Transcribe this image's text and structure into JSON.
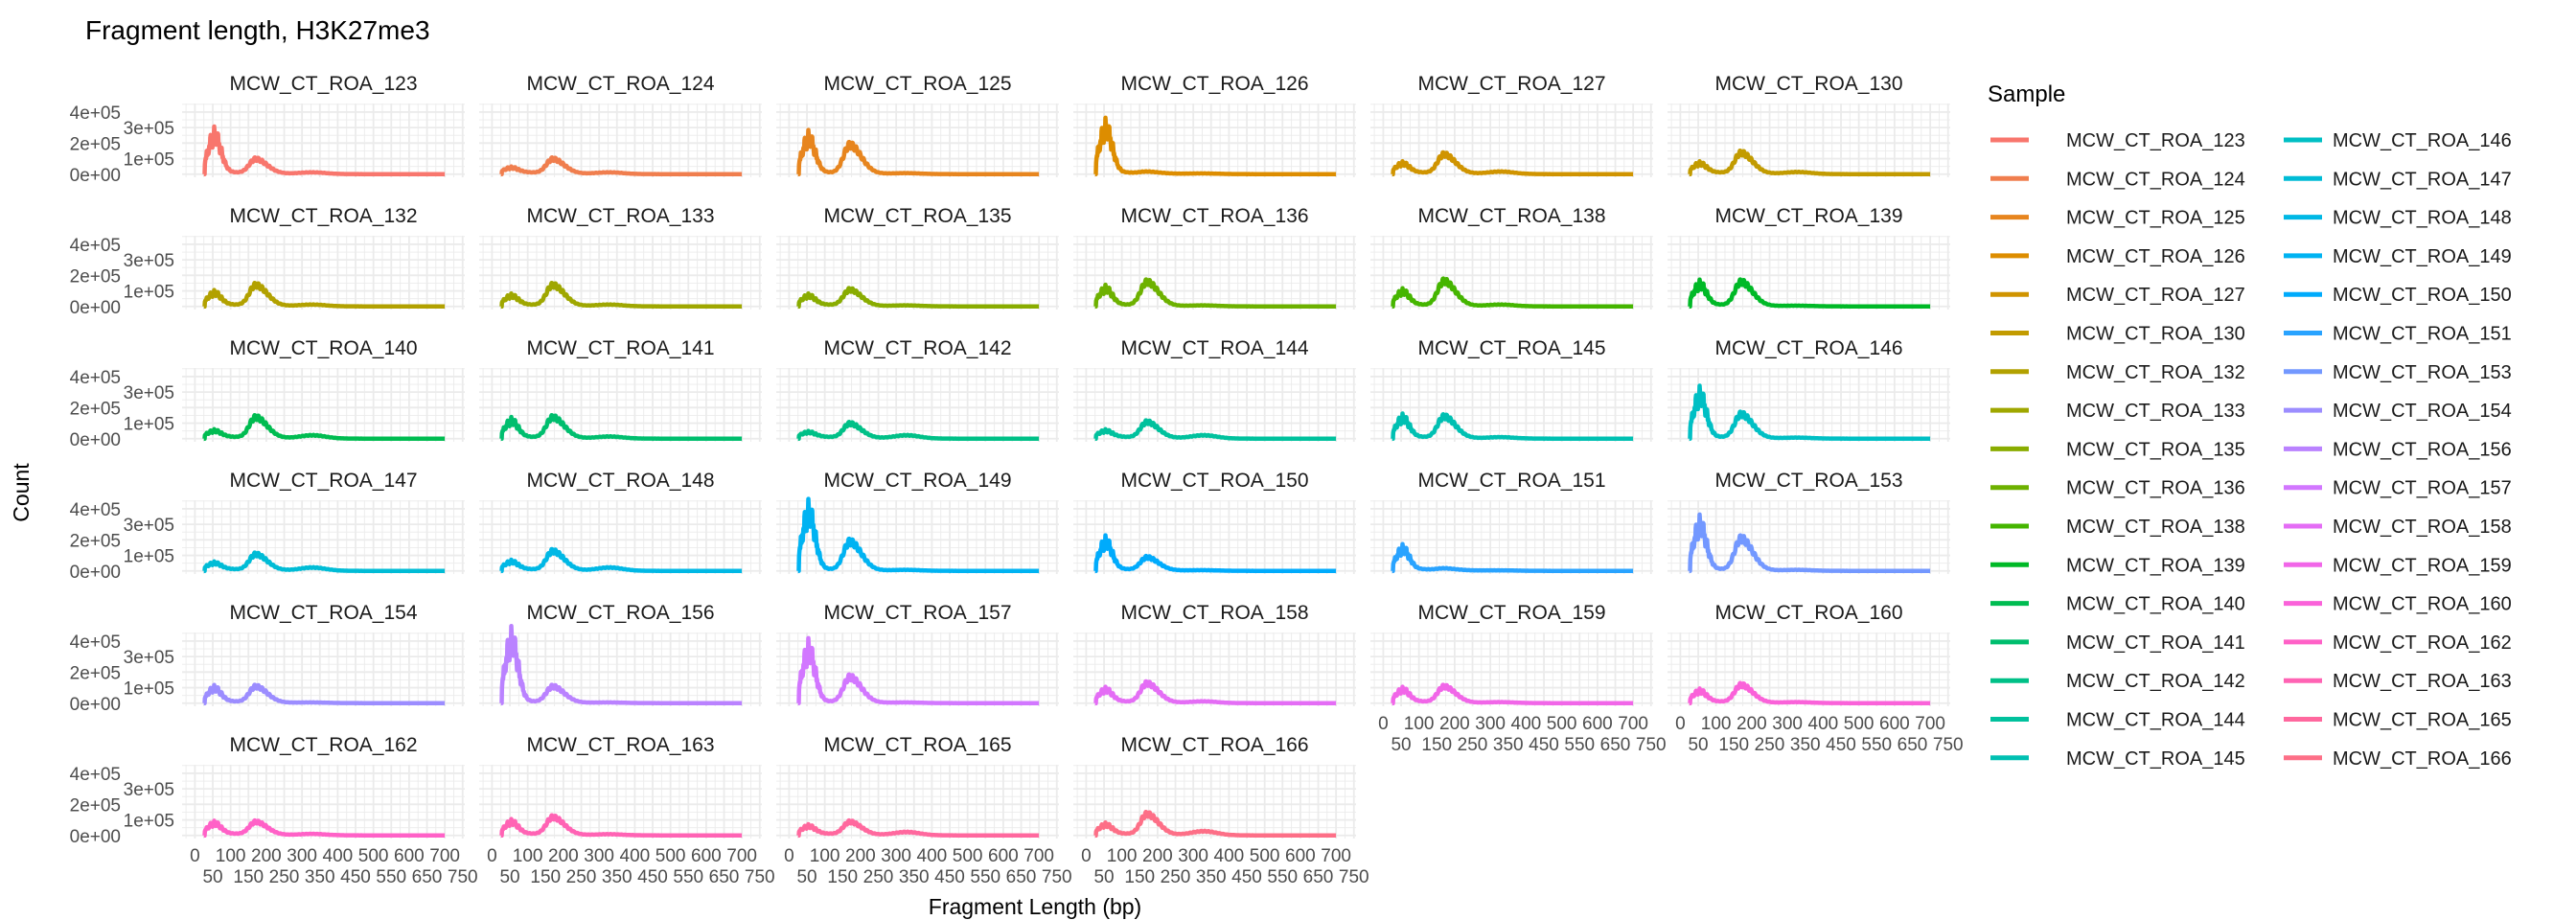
{
  "chart_data": {
    "type": "line",
    "facet": "wrap",
    "title": "Fragment length, H3K27me3",
    "xlabel": "Fragment Length (bp)",
    "ylabel": "Count",
    "xlim": [
      0,
      750
    ],
    "ylim": [
      0,
      450000
    ],
    "x_ticks": [
      "0",
      "50",
      "100",
      "150",
      "200",
      "250",
      "300",
      "350",
      "400",
      "450",
      "500",
      "550",
      "600",
      "650",
      "700",
      "750"
    ],
    "y_ticks": [
      "0e+00",
      "1e+05",
      "2e+05",
      "3e+05",
      "4e+05"
    ],
    "y_tick_values": [
      0,
      100000,
      200000,
      300000,
      400000
    ],
    "grid": true,
    "legend_title": "Sample",
    "legend_position": "right",
    "color_palette": {
      "type": "hue",
      "chroma": 100,
      "luminance": 65
    },
    "value_note_units": "peak counts in units of 1e5 at ~50bp (short), ~170bp (nucleosome), ~330bp (dinucleosome)",
    "series": [
      {
        "name": "MCW_CT_ROA_123",
        "peak_short": 2.6,
        "peak_nucleosome": 0.9,
        "peak_dinucleosome": 0.1
      },
      {
        "name": "MCW_CT_ROA_124",
        "peak_short": 0.3,
        "peak_nucleosome": 0.9,
        "peak_dinucleosome": 0.1
      },
      {
        "name": "MCW_CT_ROA_125",
        "peak_short": 2.4,
        "peak_nucleosome": 1.8,
        "peak_dinucleosome": 0.05
      },
      {
        "name": "MCW_CT_ROA_126",
        "peak_short": 3.1,
        "peak_nucleosome": 0.1,
        "peak_dinucleosome": 0.03
      },
      {
        "name": "MCW_CT_ROA_127",
        "peak_short": 0.6,
        "peak_nucleosome": 1.2,
        "peak_dinucleosome": 0.15
      },
      {
        "name": "MCW_CT_ROA_130",
        "peak_short": 0.6,
        "peak_nucleosome": 1.3,
        "peak_dinucleosome": 0.12
      },
      {
        "name": "MCW_CT_ROA_132",
        "peak_short": 0.8,
        "peak_nucleosome": 1.3,
        "peak_dinucleosome": 0.1
      },
      {
        "name": "MCW_CT_ROA_133",
        "peak_short": 0.6,
        "peak_nucleosome": 1.3,
        "peak_dinucleosome": 0.1
      },
      {
        "name": "MCW_CT_ROA_135",
        "peak_short": 0.6,
        "peak_nucleosome": 1.0,
        "peak_dinucleosome": 0.05
      },
      {
        "name": "MCW_CT_ROA_136",
        "peak_short": 1.1,
        "peak_nucleosome": 1.5,
        "peak_dinucleosome": 0.05
      },
      {
        "name": "MCW_CT_ROA_138",
        "peak_short": 0.9,
        "peak_nucleosome": 1.55,
        "peak_dinucleosome": 0.1
      },
      {
        "name": "MCW_CT_ROA_139",
        "peak_short": 1.4,
        "peak_nucleosome": 1.5,
        "peak_dinucleosome": 0.03
      },
      {
        "name": "MCW_CT_ROA_140",
        "peak_short": 0.4,
        "peak_nucleosome": 1.3,
        "peak_dinucleosome": 0.2
      },
      {
        "name": "MCW_CT_ROA_141",
        "peak_short": 1.1,
        "peak_nucleosome": 1.3,
        "peak_dinucleosome": 0.12
      },
      {
        "name": "MCW_CT_ROA_142",
        "peak_short": 0.3,
        "peak_nucleosome": 0.9,
        "peak_dinucleosome": 0.2
      },
      {
        "name": "MCW_CT_ROA_144",
        "peak_short": 0.4,
        "peak_nucleosome": 1.0,
        "peak_dinucleosome": 0.2
      },
      {
        "name": "MCW_CT_ROA_145",
        "peak_short": 1.3,
        "peak_nucleosome": 1.35,
        "peak_dinucleosome": 0.08
      },
      {
        "name": "MCW_CT_ROA_146",
        "peak_short": 2.9,
        "peak_nucleosome": 1.5,
        "peak_dinucleosome": 0.05
      },
      {
        "name": "MCW_CT_ROA_147",
        "peak_short": 0.4,
        "peak_nucleosome": 1.0,
        "peak_dinucleosome": 0.2
      },
      {
        "name": "MCW_CT_ROA_148",
        "peak_short": 0.5,
        "peak_nucleosome": 1.2,
        "peak_dinucleosome": 0.2
      },
      {
        "name": "MCW_CT_ROA_149",
        "peak_short": 4.0,
        "peak_nucleosome": 1.8,
        "peak_dinucleosome": 0.05
      },
      {
        "name": "MCW_CT_ROA_150",
        "peak_short": 1.9,
        "peak_nucleosome": 0.8,
        "peak_dinucleosome": 0.03
      },
      {
        "name": "MCW_CT_ROA_151",
        "peak_short": 1.4,
        "peak_nucleosome": 0.1,
        "peak_dinucleosome": 0.02
      },
      {
        "name": "MCW_CT_ROA_153",
        "peak_short": 3.1,
        "peak_nucleosome": 2.0,
        "peak_dinucleosome": 0.05
      },
      {
        "name": "MCW_CT_ROA_154",
        "peak_short": 0.9,
        "peak_nucleosome": 1.0,
        "peak_dinucleosome": 0.03
      },
      {
        "name": "MCW_CT_ROA_156",
        "peak_short": 4.3,
        "peak_nucleosome": 1.0,
        "peak_dinucleosome": 0.03
      },
      {
        "name": "MCW_CT_ROA_157",
        "peak_short": 3.6,
        "peak_nucleosome": 1.6,
        "peak_dinucleosome": 0.03
      },
      {
        "name": "MCW_CT_ROA_158",
        "peak_short": 0.8,
        "peak_nucleosome": 1.2,
        "peak_dinucleosome": 0.1
      },
      {
        "name": "MCW_CT_ROA_159",
        "peak_short": 0.8,
        "peak_nucleosome": 1.0,
        "peak_dinucleosome": 0.05
      },
      {
        "name": "MCW_CT_ROA_160",
        "peak_short": 0.7,
        "peak_nucleosome": 1.1,
        "peak_dinucleosome": 0.05
      },
      {
        "name": "MCW_CT_ROA_162",
        "peak_short": 0.7,
        "peak_nucleosome": 0.8,
        "peak_dinucleosome": 0.08
      },
      {
        "name": "MCW_CT_ROA_163",
        "peak_short": 0.8,
        "peak_nucleosome": 1.1,
        "peak_dinucleosome": 0.06
      },
      {
        "name": "MCW_CT_ROA_165",
        "peak_short": 0.5,
        "peak_nucleosome": 0.8,
        "peak_dinucleosome": 0.2
      },
      {
        "name": "MCW_CT_ROA_166",
        "peak_short": 0.6,
        "peak_nucleosome": 1.3,
        "peak_dinucleosome": 0.25
      }
    ]
  }
}
